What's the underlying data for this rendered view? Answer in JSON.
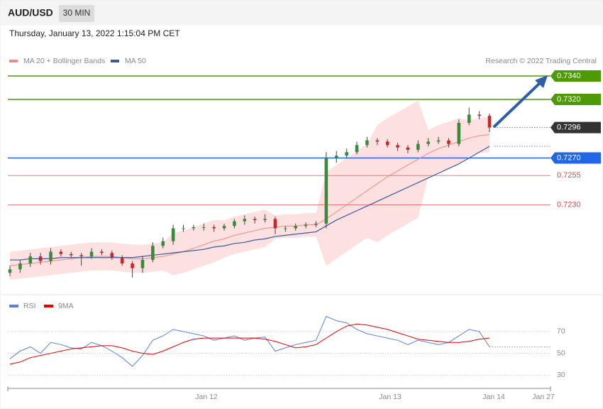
{
  "header": {
    "symbol": "AUD/USD",
    "timeframe": "30 MIN",
    "datetime": "Thursday, January 13, 2022 1:15:04 PM CET"
  },
  "chart_data": [
    {
      "type": "candlestick",
      "credit": "Research © 2022 Trading Central",
      "up_color": "#3b8a3b",
      "down_color": "#c62828",
      "ylim": [
        0.7156,
        0.7369
      ],
      "open": [
        0.7172,
        0.7175,
        0.718,
        0.7186,
        0.7182,
        0.719,
        0.7188,
        0.7187,
        0.7186,
        0.719,
        0.7189,
        0.7185,
        0.718,
        0.7176,
        0.7183,
        0.7195,
        0.7199,
        0.721,
        0.721,
        0.7211,
        0.7211,
        0.721,
        0.7212,
        0.7216,
        0.7218,
        0.7217,
        0.7218,
        0.721,
        0.721,
        0.7212,
        0.7213,
        0.7214,
        0.727,
        0.7272,
        0.7275,
        0.7281,
        0.7285,
        0.7284,
        0.7281,
        0.7279,
        0.7277,
        0.7282,
        0.7284,
        0.7285,
        0.7282,
        0.73,
        0.7307,
        0.7306
      ],
      "high": [
        0.7178,
        0.7183,
        0.7189,
        0.7189,
        0.7193,
        0.7192,
        0.719,
        0.7189,
        0.7193,
        0.7192,
        0.7191,
        0.7187,
        0.7182,
        0.7186,
        0.7198,
        0.7202,
        0.7213,
        0.7213,
        0.7213,
        0.7214,
        0.7213,
        0.7214,
        0.7218,
        0.7221,
        0.722,
        0.7222,
        0.722,
        0.7212,
        0.7214,
        0.7215,
        0.7216,
        0.7275,
        0.7276,
        0.7278,
        0.7284,
        0.7288,
        0.7287,
        0.7286,
        0.7283,
        0.7281,
        0.7285,
        0.7287,
        0.7288,
        0.7287,
        0.7303,
        0.7313,
        0.731,
        0.7308
      ],
      "low": [
        0.7169,
        0.7172,
        0.7177,
        0.7179,
        0.7179,
        0.7186,
        0.7185,
        0.7178,
        0.7184,
        0.7187,
        0.7183,
        0.7178,
        0.7168,
        0.7172,
        0.7181,
        0.7193,
        0.7196,
        0.7207,
        0.7208,
        0.7208,
        0.7207,
        0.7208,
        0.721,
        0.7213,
        0.7214,
        0.7215,
        0.7205,
        0.7207,
        0.7208,
        0.721,
        0.7211,
        0.721,
        0.7266,
        0.727,
        0.7273,
        0.7279,
        0.7281,
        0.7279,
        0.7276,
        0.7274,
        0.7275,
        0.728,
        0.7282,
        0.7279,
        0.728,
        0.7298,
        0.7303,
        0.7292
      ],
      "close": [
        0.7175,
        0.718,
        0.7186,
        0.7182,
        0.719,
        0.7188,
        0.7187,
        0.7186,
        0.719,
        0.7189,
        0.7185,
        0.718,
        0.7176,
        0.7183,
        0.7195,
        0.7199,
        0.721,
        0.721,
        0.7211,
        0.7211,
        0.721,
        0.7212,
        0.7216,
        0.7218,
        0.7217,
        0.7218,
        0.721,
        0.721,
        0.7212,
        0.7213,
        0.7214,
        0.727,
        0.7272,
        0.7275,
        0.7281,
        0.7285,
        0.7284,
        0.7281,
        0.7279,
        0.7277,
        0.7282,
        0.7284,
        0.7285,
        0.7282,
        0.73,
        0.7307,
        0.7306,
        0.7296
      ],
      "series": [
        {
          "name": "MA 20 + Bollinger Bands",
          "color": "#f08a8a",
          "band_color": "#fde0e0",
          "values": [
            0.7178,
            0.7179,
            0.718,
            0.7181,
            0.7182,
            0.7183,
            0.7184,
            0.7185,
            0.7186,
            0.7186,
            0.7186,
            0.7185,
            0.7184,
            0.7184,
            0.7185,
            0.7186,
            0.7188,
            0.719,
            0.7193,
            0.7196,
            0.7199,
            0.7201,
            0.7204,
            0.7206,
            0.7208,
            0.721,
            0.7211,
            0.7212,
            0.7212,
            0.7213,
            0.7213,
            0.7218,
            0.7224,
            0.723,
            0.7236,
            0.7242,
            0.7248,
            0.7254,
            0.7259,
            0.7264,
            0.7269,
            0.7274,
            0.7278,
            0.7281,
            0.7284,
            0.7287,
            0.7289,
            0.729
          ],
          "upper": [
            0.719,
            0.7191,
            0.7192,
            0.7193,
            0.7194,
            0.7195,
            0.7196,
            0.7197,
            0.7198,
            0.7198,
            0.7198,
            0.7197,
            0.7196,
            0.7196,
            0.7197,
            0.7198,
            0.7206,
            0.7208,
            0.7211,
            0.7214,
            0.7217,
            0.7217,
            0.722,
            0.7222,
            0.7224,
            0.7226,
            0.7221,
            0.7222,
            0.7222,
            0.7223,
            0.7223,
            0.7258,
            0.7264,
            0.727,
            0.7276,
            0.7282,
            0.7298,
            0.7304,
            0.7309,
            0.7314,
            0.7319,
            0.7294,
            0.7298,
            0.7301,
            0.7304,
            0.7302,
            0.7304,
            0.7305
          ],
          "lower": [
            0.7166,
            0.7167,
            0.7168,
            0.7169,
            0.717,
            0.7171,
            0.7172,
            0.7173,
            0.7174,
            0.7174,
            0.7174,
            0.7173,
            0.7172,
            0.7172,
            0.7173,
            0.7174,
            0.717,
            0.7172,
            0.7175,
            0.7178,
            0.7181,
            0.7185,
            0.7188,
            0.719,
            0.7192,
            0.7194,
            0.7201,
            0.7202,
            0.7202,
            0.7203,
            0.7203,
            0.7178,
            0.7184,
            0.719,
            0.7196,
            0.7202,
            0.7198,
            0.7204,
            0.7209,
            0.7214,
            0.7219,
            0.7254,
            0.7258,
            0.7261,
            0.7264,
            0.7272,
            0.7274,
            0.7275
          ]
        },
        {
          "name": "MA 50",
          "color": "#3a5a9a",
          "values": [
            0.7183,
            0.7183,
            0.7184,
            0.7184,
            0.7184,
            0.7185,
            0.7185,
            0.7185,
            0.7185,
            0.7185,
            0.7185,
            0.7185,
            0.7185,
            0.7186,
            0.7187,
            0.7188,
            0.7189,
            0.719,
            0.7191,
            0.7192,
            0.7194,
            0.7195,
            0.7197,
            0.7198,
            0.72,
            0.7201,
            0.7203,
            0.7204,
            0.7205,
            0.7206,
            0.7207,
            0.7212,
            0.7217,
            0.7221,
            0.7225,
            0.7229,
            0.7233,
            0.7237,
            0.7241,
            0.7245,
            0.7249,
            0.7253,
            0.7257,
            0.7261,
            0.7265,
            0.727,
            0.7275,
            0.728
          ]
        }
      ],
      "levels": [
        {
          "value": 0.734,
          "label": "0.7340",
          "color": "#4e9a06",
          "style": "solid",
          "boxed": true
        },
        {
          "value": 0.732,
          "label": "0.7320",
          "color": "#4e9a06",
          "style": "solid",
          "boxed": true
        },
        {
          "value": 0.7296,
          "label": "0.7296",
          "color": "#333333",
          "style": "dotted",
          "boxed": true
        },
        {
          "value": 0.727,
          "label": "0.7270",
          "color": "#2166e8",
          "style": "solid",
          "boxed": true
        },
        {
          "value": 0.7255,
          "label": "0.7255",
          "color": "#e04848",
          "style": "solid",
          "boxed": false
        },
        {
          "value": 0.723,
          "label": "0.7230",
          "color": "#e04848",
          "style": "solid",
          "boxed": false
        }
      ]
    },
    {
      "type": "line",
      "ylim": [
        19,
        88
      ],
      "yticks": [
        30,
        50,
        70
      ],
      "grid": true,
      "x_labels": [
        "Jan 12",
        "Jan 13",
        "Jan 14",
        "Jan 27"
      ],
      "series": [
        {
          "name": "RSI",
          "color": "#5b7fdc",
          "values": [
            45,
            52,
            56,
            50,
            60,
            58,
            55,
            54,
            60,
            57,
            52,
            46,
            38,
            48,
            62,
            66,
            72,
            70,
            68,
            66,
            62,
            64,
            66,
            62,
            64,
            65,
            52,
            55,
            58,
            60,
            62,
            84,
            80,
            78,
            72,
            68,
            66,
            64,
            62,
            58,
            62,
            60,
            58,
            60,
            66,
            72,
            70,
            56
          ]
        },
        {
          "name": "9MA",
          "color": "#e00000",
          "values": [
            40,
            42,
            46,
            48,
            50,
            52,
            54,
            55,
            56,
            57,
            57,
            55,
            52,
            50,
            49,
            52,
            56,
            60,
            63,
            64,
            64,
            64,
            64,
            64,
            64,
            63,
            61,
            58,
            55,
            56,
            58,
            64,
            70,
            75,
            77,
            76,
            74,
            72,
            69,
            66,
            63,
            62,
            61,
            60,
            60,
            61,
            63,
            64
          ]
        }
      ]
    }
  ]
}
